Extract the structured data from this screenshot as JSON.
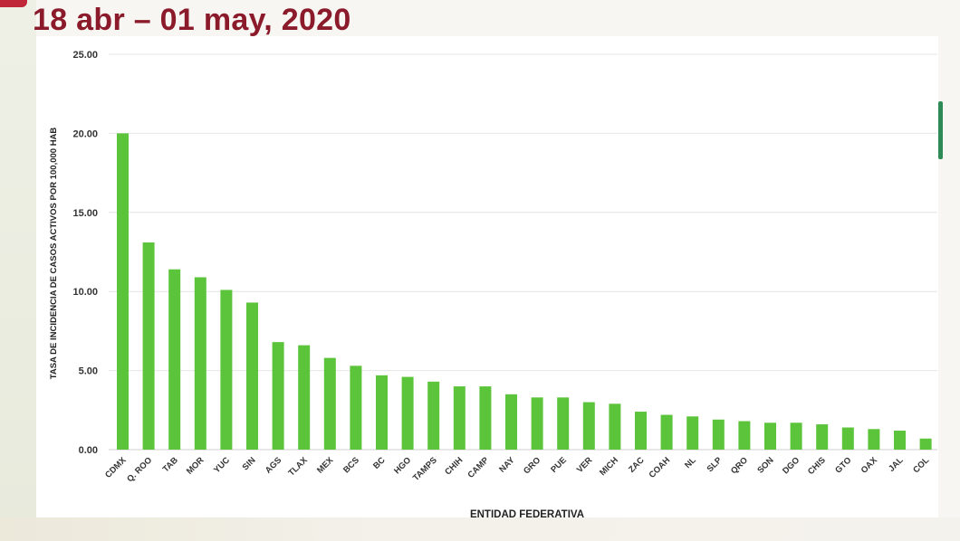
{
  "header": {
    "title": "18 abr – 01 may, 2020"
  },
  "chart_data": {
    "type": "bar",
    "title": "18 abr – 01 may, 2020",
    "xlabel": "ENTIDAD FEDERATIVA",
    "ylabel": "TASA DE INCIDENCIA DE CASOS ACTIVOS  POR 100,000 HAB",
    "ylim": [
      0,
      25
    ],
    "yticks": [
      "0.00",
      "5.00",
      "10.00",
      "15.00",
      "20.00",
      "25.00"
    ],
    "grid": true,
    "legend": "none",
    "bar_color": "#5cc43a",
    "categories": [
      "CDMX",
      "Q. ROO",
      "TAB",
      "MOR",
      "YUC",
      "SIN",
      "AGS",
      "TLAX",
      "MEX",
      "BCS",
      "BC",
      "HGO",
      "TAMPS",
      "CHIH",
      "CAMP",
      "NAY",
      "GRO",
      "PUE",
      "VER",
      "MICH",
      "ZAC",
      "COAH",
      "NL",
      "SLP",
      "QRO",
      "SON",
      "DGO",
      "CHIS",
      "GTO",
      "OAX",
      "JAL",
      "COL"
    ],
    "values": [
      20.0,
      13.1,
      11.4,
      10.9,
      10.1,
      9.3,
      6.8,
      6.6,
      5.8,
      5.3,
      4.7,
      4.6,
      4.3,
      4.0,
      4.0,
      3.5,
      3.3,
      3.3,
      3.0,
      2.9,
      2.4,
      2.2,
      2.1,
      1.9,
      1.8,
      1.7,
      1.7,
      1.6,
      1.4,
      1.3,
      1.2,
      0.7
    ]
  }
}
